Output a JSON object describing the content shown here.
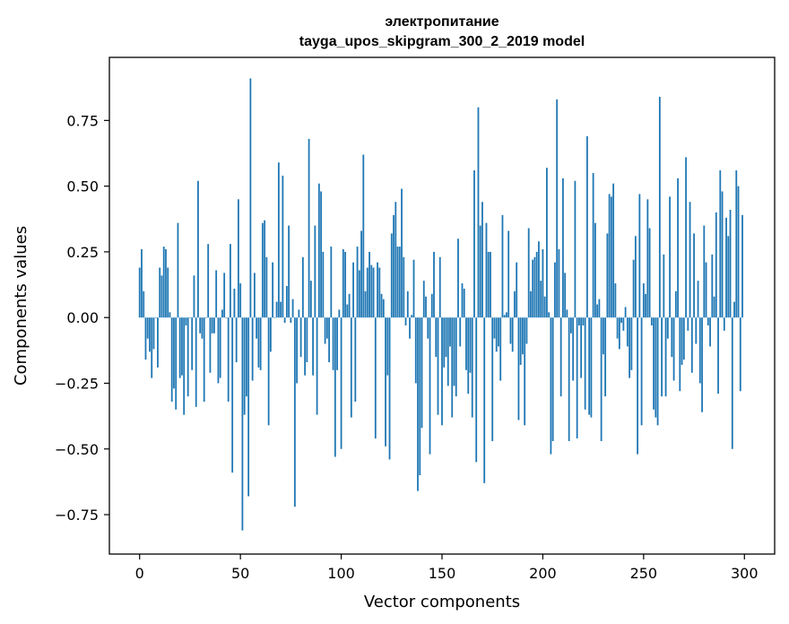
{
  "chart_data": {
    "type": "bar",
    "title": "электропитание",
    "subtitle": "tayga_upos_skipgram_300_2_2019 model",
    "xlabel": "Vector components",
    "ylabel": "Components values",
    "xlim": [
      -15,
      315
    ],
    "ylim": [
      -0.9,
      0.99
    ],
    "xticks": [
      0,
      50,
      100,
      150,
      200,
      250,
      300
    ],
    "xtick_labels": [
      "0",
      "50",
      "100",
      "150",
      "200",
      "250",
      "300"
    ],
    "yticks": [
      -0.75,
      -0.5,
      -0.25,
      0.0,
      0.25,
      0.5,
      0.75
    ],
    "ytick_labels": [
      "−0.75",
      "−0.50",
      "−0.25",
      "0.00",
      "0.25",
      "0.50",
      "0.75"
    ],
    "bar_color": "#1f77b4",
    "grid": false,
    "x": "0..299 (component index)",
    "values": [
      0.19,
      0.26,
      0.1,
      -0.16,
      -0.08,
      -0.13,
      -0.23,
      -0.12,
      0.0,
      -0.19,
      0.19,
      0.16,
      0.27,
      0.26,
      0.19,
      0.02,
      -0.32,
      -0.27,
      -0.35,
      0.36,
      -0.23,
      -0.22,
      -0.37,
      -0.03,
      -0.3,
      0.0,
      -0.2,
      0.16,
      -0.34,
      0.52,
      -0.06,
      -0.08,
      -0.32,
      0.0,
      0.28,
      -0.21,
      -0.06,
      -0.06,
      0.18,
      -0.25,
      -0.23,
      0.03,
      0.17,
      0.0,
      -0.32,
      0.28,
      -0.59,
      0.11,
      -0.17,
      0.45,
      0.13,
      -0.81,
      -0.37,
      -0.3,
      -0.68,
      0.91,
      -0.24,
      0.17,
      -0.08,
      -0.19,
      -0.2,
      0.36,
      0.37,
      0.23,
      -0.41,
      -0.13,
      0.21,
      0.0,
      0.06,
      0.59,
      0.06,
      0.54,
      -0.02,
      0.12,
      0.35,
      -0.02,
      0.07,
      -0.72,
      -0.25,
      0.03,
      -0.15,
      0.23,
      -0.22,
      -0.17,
      0.68,
      0.14,
      -0.22,
      0.35,
      -0.37,
      0.51,
      0.48,
      0.25,
      -0.1,
      -0.08,
      -0.17,
      0.27,
      -0.2,
      -0.53,
      -0.2,
      0.03,
      -0.5,
      0.26,
      0.25,
      0.05,
      0.09,
      -0.38,
      0.21,
      -0.32,
      0.27,
      0.18,
      0.33,
      0.62,
      0.1,
      0.19,
      0.25,
      0.2,
      0.19,
      -0.46,
      0.21,
      0.19,
      0.09,
      0.07,
      -0.49,
      -0.22,
      -0.54,
      0.32,
      0.39,
      0.44,
      0.27,
      0.27,
      0.49,
      0.23,
      -0.03,
      0.1,
      -0.08,
      0.01,
      0.22,
      -0.25,
      -0.66,
      -0.6,
      -0.42,
      0.14,
      0.08,
      -0.08,
      -0.52,
      0.09,
      0.25,
      -0.15,
      -0.37,
      0.23,
      -0.41,
      -0.19,
      -0.15,
      -0.26,
      -0.11,
      -0.38,
      -0.26,
      -0.3,
      0.3,
      -0.11,
      0.13,
      0.11,
      -0.2,
      -0.29,
      -0.21,
      -0.38,
      0.56,
      -0.55,
      0.8,
      0.35,
      0.44,
      -0.63,
      0.36,
      0.25,
      0.25,
      -0.47,
      -0.08,
      -0.13,
      -0.11,
      -0.24,
      0.39,
      0.01,
      0.02,
      0.33,
      -0.1,
      -0.13,
      0.1,
      0.21,
      -0.39,
      -0.18,
      -0.14,
      -0.41,
      -0.1,
      0.34,
      0.1,
      0.22,
      0.23,
      0.25,
      0.29,
      0.14,
      0.26,
      0.08,
      0.57,
      0.02,
      -0.52,
      -0.47,
      0.21,
      0.83,
      0.26,
      -0.3,
      0.53,
      0.17,
      0.03,
      -0.47,
      -0.06,
      -0.24,
      0.52,
      -0.46,
      -0.03,
      -0.23,
      -0.03,
      -0.35,
      0.69,
      -0.37,
      -0.38,
      0.55,
      0.36,
      0.05,
      0.07,
      -0.47,
      -0.14,
      -0.3,
      0.32,
      0.47,
      0.46,
      0.51,
      0.13,
      -0.08,
      -0.12,
      -0.02,
      -0.05,
      0.04,
      -0.11,
      -0.23,
      -0.2,
      0.22,
      0.31,
      -0.52,
      0.47,
      -0.41,
      0.13,
      0.09,
      0.45,
      0.34,
      -0.03,
      -0.35,
      -0.38,
      -0.41,
      0.84,
      -0.3,
      0.24,
      -0.3,
      -0.08,
      0.46,
      -0.15,
      -0.24,
      0.1,
      0.53,
      -0.28,
      -0.18,
      -0.16,
      0.61,
      -0.05,
      0.44,
      -0.21,
      0.32,
      -0.1,
      0.14,
      -0.25,
      -0.36,
      0.35,
      0.21,
      -0.03,
      -0.11,
      0.24,
      0.08,
      0.4,
      -0.29,
      0.56,
      0.48,
      -0.05,
      0.38,
      0.31,
      0.41,
      -0.5,
      0.06,
      0.56,
      0.5,
      -0.28,
      0.39
    ]
  }
}
